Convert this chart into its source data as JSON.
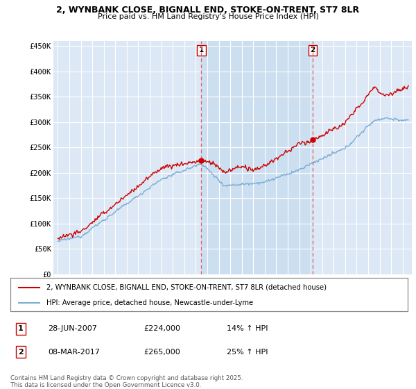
{
  "title": "2, WYNBANK CLOSE, BIGNALL END, STOKE-ON-TRENT, ST7 8LR",
  "subtitle": "Price paid vs. HM Land Registry's House Price Index (HPI)",
  "ylim": [
    0,
    460000
  ],
  "yticks": [
    0,
    50000,
    100000,
    150000,
    200000,
    250000,
    300000,
    350000,
    400000,
    450000
  ],
  "ytick_labels": [
    "£0",
    "£50K",
    "£100K",
    "£150K",
    "£200K",
    "£250K",
    "£300K",
    "£350K",
    "£400K",
    "£450K"
  ],
  "sale1_date": 2007.49,
  "sale1_price": 224000,
  "sale1_label": "1",
  "sale2_date": 2017.18,
  "sale2_price": 265000,
  "sale2_label": "2",
  "legend_house": "2, WYNBANK CLOSE, BIGNALL END, STOKE-ON-TRENT, ST7 8LR (detached house)",
  "legend_hpi": "HPI: Average price, detached house, Newcastle-under-Lyme",
  "table_row1": [
    "1",
    "28-JUN-2007",
    "£224,000",
    "14% ↑ HPI"
  ],
  "table_row2": [
    "2",
    "08-MAR-2017",
    "£265,000",
    "25% ↑ HPI"
  ],
  "footer": "Contains HM Land Registry data © Crown copyright and database right 2025.\nThis data is licensed under the Open Government Licence v3.0.",
  "house_color": "#cc0000",
  "hpi_color": "#7aadd4",
  "bg_color": "#dce8f5",
  "shade_color": "#ccdff0",
  "sale_marker_color": "#cc0000",
  "vline_color": "#e06060",
  "grid_color": "#ffffff",
  "title_fontsize": 9,
  "subtitle_fontsize": 8
}
